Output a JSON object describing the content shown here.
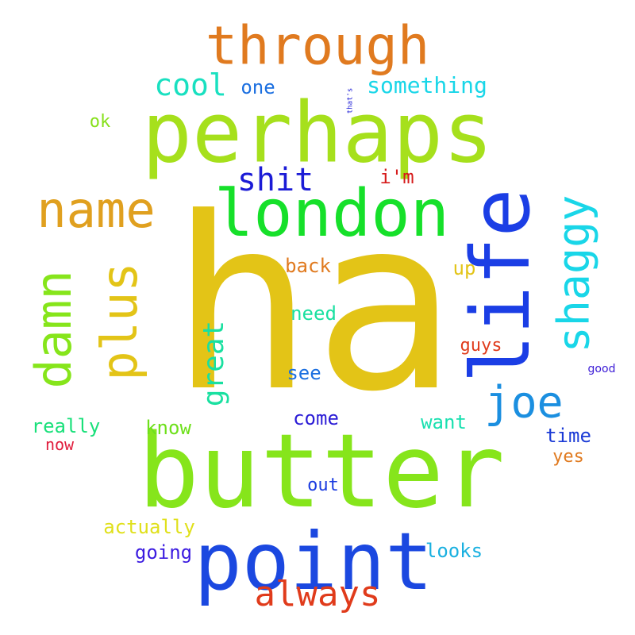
{
  "word_cloud": {
    "words": [
      {
        "text": "ha",
        "color": "#e3c417"
      },
      {
        "text": "perhaps",
        "color": "#a6e01c"
      },
      {
        "text": "butter",
        "color": "#86e51b"
      },
      {
        "text": "point",
        "color": "#1b48e0"
      },
      {
        "text": "life",
        "color": "#1b3ee5"
      },
      {
        "text": "london",
        "color": "#16e02a"
      },
      {
        "text": "through",
        "color": "#e07a1f"
      },
      {
        "text": "name",
        "color": "#e0a01f"
      },
      {
        "text": "damn",
        "color": "#86e51b"
      },
      {
        "text": "plus",
        "color": "#e3c417"
      },
      {
        "text": "shaggy",
        "color": "#19d6e8"
      },
      {
        "text": "joe",
        "color": "#1b8fe0"
      },
      {
        "text": "always",
        "color": "#e03b1b"
      },
      {
        "text": "shit",
        "color": "#1b1bd6"
      },
      {
        "text": "cool",
        "color": "#19e0c0"
      },
      {
        "text": "great",
        "color": "#19e0a0"
      },
      {
        "text": "something",
        "color": "#19d6e8"
      },
      {
        "text": "one",
        "color": "#1b6fe0"
      },
      {
        "text": "that's",
        "color": "#1b1bd6"
      },
      {
        "text": "ok",
        "color": "#86e01b"
      },
      {
        "text": "i'm",
        "color": "#d61b1b"
      },
      {
        "text": "back",
        "color": "#e07a1f"
      },
      {
        "text": "up",
        "color": "#e3c417"
      },
      {
        "text": "need",
        "color": "#19e0a0"
      },
      {
        "text": "guys",
        "color": "#e03b1b"
      },
      {
        "text": "good",
        "color": "#3b1bd6"
      },
      {
        "text": "see",
        "color": "#1b6fe0"
      },
      {
        "text": "come",
        "color": "#2a1bd6"
      },
      {
        "text": "really",
        "color": "#19e07a"
      },
      {
        "text": "know",
        "color": "#6ee01b"
      },
      {
        "text": "want",
        "color": "#19e0b0"
      },
      {
        "text": "now",
        "color": "#e01b3b"
      },
      {
        "text": "time",
        "color": "#1b3bd6"
      },
      {
        "text": "yes",
        "color": "#e07a1f"
      },
      {
        "text": "out",
        "color": "#1b3be0"
      },
      {
        "text": "actually",
        "color": "#e0e01b"
      },
      {
        "text": "going",
        "color": "#3b1be0"
      },
      {
        "text": "looks",
        "color": "#19b0e0"
      }
    ]
  }
}
